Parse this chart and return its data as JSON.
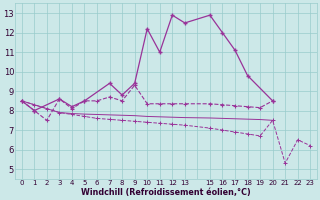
{
  "x": [
    0,
    1,
    2,
    3,
    4,
    5,
    6,
    7,
    8,
    9,
    10,
    11,
    12,
    13,
    15,
    16,
    17,
    18,
    19,
    20,
    21,
    22,
    23
  ],
  "line1_x": [
    0,
    1,
    3,
    4,
    5,
    7,
    8,
    9,
    10,
    11,
    12,
    13,
    15,
    16,
    17,
    18,
    20
  ],
  "line1_y": [
    8.5,
    8.0,
    8.6,
    8.2,
    8.5,
    9.4,
    8.8,
    9.4,
    12.2,
    11.0,
    12.9,
    12.5,
    12.9,
    12.0,
    11.1,
    9.8,
    8.5
  ],
  "line2_x": [
    0,
    1,
    2,
    3,
    4,
    5,
    6,
    7,
    8,
    9,
    10,
    11,
    12,
    13,
    15,
    16,
    17,
    18,
    19,
    20
  ],
  "line2_y": [
    8.5,
    8.0,
    7.5,
    8.6,
    8.1,
    8.5,
    8.5,
    8.7,
    8.5,
    9.3,
    8.35,
    8.35,
    8.35,
    8.35,
    8.35,
    8.3,
    8.25,
    8.2,
    8.15,
    8.5
  ],
  "line3_x": [
    0,
    1,
    2,
    3,
    4,
    5,
    6,
    7,
    8,
    9,
    10,
    11,
    12,
    13,
    15,
    16,
    17,
    18,
    19,
    20
  ],
  "line3_y": [
    8.5,
    8.3,
    8.1,
    7.9,
    7.85,
    7.82,
    7.8,
    7.78,
    7.76,
    7.74,
    7.7,
    7.68,
    7.66,
    7.64,
    7.62,
    7.6,
    7.58,
    7.56,
    7.54,
    7.5
  ],
  "line4_x": [
    0,
    1,
    2,
    3,
    4,
    5,
    6,
    7,
    8,
    9,
    10,
    11,
    12,
    13,
    15,
    16,
    17,
    18,
    19,
    20,
    21,
    22,
    23
  ],
  "line4_y": [
    8.5,
    8.3,
    8.1,
    7.9,
    7.8,
    7.7,
    7.6,
    7.55,
    7.5,
    7.45,
    7.4,
    7.35,
    7.3,
    7.25,
    7.1,
    7.0,
    6.9,
    6.8,
    6.7,
    7.5,
    5.3,
    6.5,
    6.2
  ],
  "bg_color": "#cce8e8",
  "line_color": "#993399",
  "grid_color": "#99cccc",
  "xlabel": "Windchill (Refroidissement éolien,°C)",
  "xtick_labels": [
    "0",
    "1",
    "2",
    "3",
    "4",
    "5",
    "6",
    "7",
    "8",
    "9",
    "10",
    "11",
    "12",
    "13",
    "",
    "15",
    "16",
    "17",
    "18",
    "19",
    "20",
    "21",
    "22",
    "23"
  ],
  "xtick_positions": [
    0,
    1,
    2,
    3,
    4,
    5,
    6,
    7,
    8,
    9,
    10,
    11,
    12,
    13,
    14,
    15,
    16,
    17,
    18,
    19,
    20,
    21,
    22,
    23
  ],
  "ylabel_ticks": [
    5,
    6,
    7,
    8,
    9,
    10,
    11,
    12,
    13
  ],
  "xlim": [
    -0.5,
    23.5
  ],
  "ylim": [
    4.5,
    13.5
  ]
}
